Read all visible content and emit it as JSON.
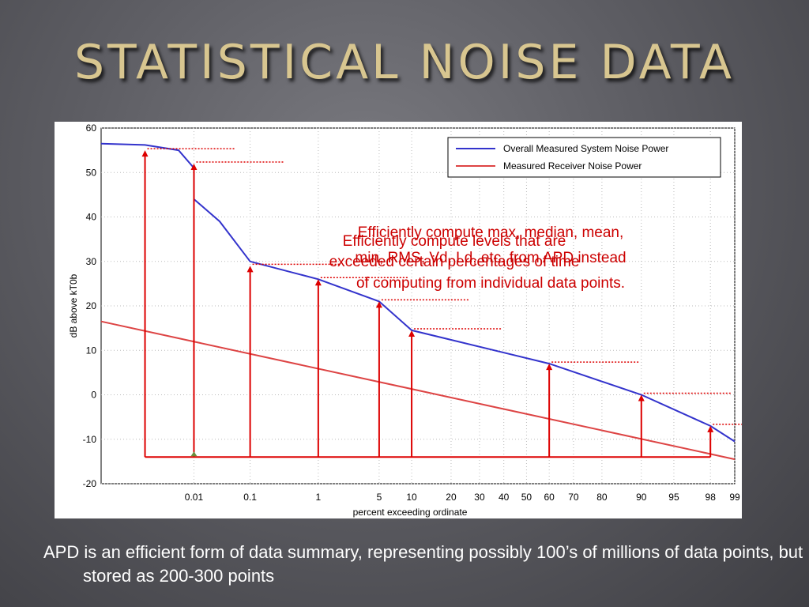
{
  "slide": {
    "title": "STATISTICAL NOISE DATA",
    "caption": "APD is an efficient form of data summary, representing possibly 100’s of millions of data points, but stored as 200-300 points",
    "title_color": "#d8c690"
  },
  "chart_data": {
    "type": "line",
    "title": "",
    "xlabel": "percent exceeding ordinate",
    "ylabel": "dB above kT0b",
    "ylim": [
      -20,
      60
    ],
    "yticks": [
      60,
      50,
      40,
      30,
      20,
      10,
      0,
      -10,
      -20
    ],
    "xticks": [
      "0.01",
      "0.1",
      "1",
      "5",
      "10",
      "20",
      "30",
      "40",
      "50",
      "60",
      "70",
      "80",
      "90",
      "95",
      "98",
      "99"
    ],
    "grid": true,
    "legend_position": "top-right",
    "series": [
      {
        "name": "Overall Measured System Noise Power",
        "color": "#3333cc",
        "points": [
          [
            "0.0001",
            56.5
          ],
          [
            "0.001",
            56.2
          ],
          [
            "0.005",
            55.0
          ],
          [
            "0.01",
            51.0
          ],
          [
            "0.01",
            44.0
          ],
          [
            "0.03",
            39.0
          ],
          [
            "0.1",
            30.0
          ],
          [
            "1",
            26.0
          ],
          [
            "5",
            21.0
          ],
          [
            "10",
            14.5
          ],
          [
            "60",
            7.0
          ],
          [
            "90",
            0.0
          ],
          [
            "98",
            -7.0
          ],
          [
            "99",
            -10.5
          ]
        ]
      },
      {
        "name": "Measured Receiver Noise Power",
        "color": "#dd4444",
        "points": [
          [
            "0.0001",
            16.5
          ],
          [
            "99",
            -14.5
          ]
        ]
      }
    ],
    "annotations": [
      {
        "text_lines": [
          "Efficiently compute max, median, mean,",
          "min, RMS, Vd, Ld, etc. from APD instead",
          "of computing from individual data points."
        ],
        "color": "#cc0000"
      },
      {
        "text_lines": [
          "Efficiently compute levels that are",
          "exceeded certain percentages of time"
        ],
        "color": "#cc0000"
      }
    ],
    "markers": [
      {
        "x": "0.001",
        "y": 55.0
      },
      {
        "x": "0.01",
        "y": 52.0
      },
      {
        "x": "0.1",
        "y": 29.0
      },
      {
        "x": "1",
        "y": 26.0
      },
      {
        "x": "5",
        "y": 21.0
      },
      {
        "x": "10",
        "y": 14.5
      },
      {
        "x": "60",
        "y": 7.0
      },
      {
        "x": "90",
        "y": 0.0
      },
      {
        "x": "98",
        "y": -7.0
      }
    ],
    "marker_baseline_y": -14,
    "marker_color": "#dd0000"
  }
}
